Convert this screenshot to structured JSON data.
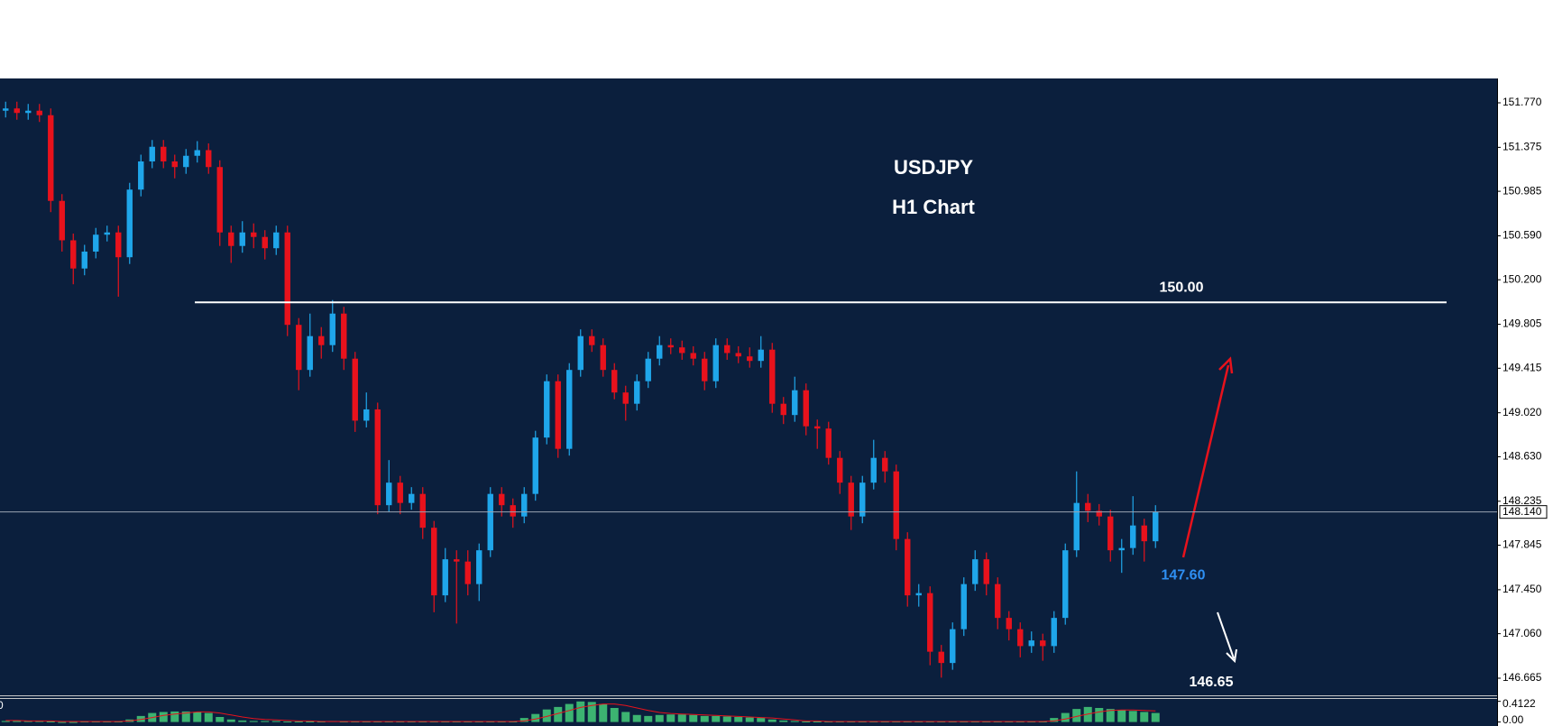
{
  "chart_data": {
    "type": "candlestick",
    "title": "USDJPY",
    "subtitle": "H1 Chart",
    "up_color": "#1fa6ea",
    "down_color": "#e8121c",
    "open": [
      151.7,
      151.72,
      151.68,
      151.7,
      151.66,
      150.9,
      150.55,
      150.3,
      150.45,
      150.6,
      150.62,
      150.4,
      151.0,
      151.25,
      151.38,
      151.25,
      151.2,
      151.3,
      151.35,
      151.2,
      150.62,
      150.5,
      150.62,
      150.58,
      150.48,
      150.62,
      149.8,
      149.4,
      149.7,
      149.62,
      149.9,
      149.5,
      148.95,
      149.05,
      148.2,
      148.4,
      148.22,
      148.3,
      148.0,
      147.4,
      147.72,
      147.7,
      147.5,
      147.8,
      148.3,
      148.2,
      148.1,
      148.3,
      148.8,
      149.3,
      148.7,
      149.4,
      149.7,
      149.62,
      149.4,
      149.2,
      149.1,
      149.3,
      149.5,
      149.62,
      149.6,
      149.55,
      149.5,
      149.3,
      149.62,
      149.55,
      149.52,
      149.48,
      149.58,
      149.1,
      149.0,
      149.22,
      148.9,
      148.88,
      148.62,
      148.4,
      148.1,
      148.4,
      148.62,
      148.5,
      147.9,
      147.4,
      147.42,
      146.9,
      146.8,
      147.1,
      147.5,
      147.72,
      147.5,
      147.2,
      147.1,
      146.95,
      147.0,
      146.95,
      147.2,
      147.8,
      148.22,
      148.15,
      148.1,
      147.8,
      147.82,
      148.02,
      147.88
    ],
    "high": [
      151.78,
      151.78,
      151.76,
      151.76,
      151.72,
      150.96,
      150.61,
      150.51,
      150.66,
      150.68,
      150.68,
      151.06,
      151.31,
      151.44,
      151.44,
      151.31,
      151.36,
      151.43,
      151.41,
      151.26,
      150.68,
      150.72,
      150.7,
      150.64,
      150.68,
      150.68,
      149.86,
      149.9,
      149.78,
      150.02,
      149.96,
      149.56,
      149.2,
      149.11,
      148.6,
      148.46,
      148.36,
      148.36,
      148.06,
      147.82,
      147.8,
      147.8,
      147.86,
      148.36,
      148.36,
      148.26,
      148.36,
      148.86,
      149.36,
      149.36,
      149.46,
      149.76,
      149.76,
      149.68,
      149.46,
      149.26,
      149.36,
      149.56,
      149.7,
      149.68,
      149.66,
      149.61,
      149.56,
      149.68,
      149.68,
      149.61,
      149.6,
      149.7,
      149.64,
      149.16,
      149.34,
      149.28,
      148.96,
      148.94,
      148.68,
      148.46,
      148.46,
      148.78,
      148.68,
      148.56,
      147.96,
      147.5,
      147.48,
      146.96,
      147.16,
      147.56,
      147.8,
      147.78,
      147.56,
      147.26,
      147.16,
      147.08,
      147.06,
      147.26,
      147.86,
      148.5,
      148.3,
      148.21,
      148.16,
      147.9,
      148.28,
      148.08,
      148.2
    ],
    "low": [
      151.64,
      151.62,
      151.62,
      151.6,
      150.8,
      150.45,
      150.16,
      150.24,
      150.39,
      150.54,
      150.05,
      150.34,
      150.94,
      151.19,
      151.19,
      151.1,
      151.14,
      151.24,
      151.14,
      150.5,
      150.35,
      150.44,
      150.48,
      150.38,
      150.42,
      149.7,
      149.22,
      149.34,
      149.5,
      149.56,
      149.4,
      148.85,
      148.89,
      148.12,
      148.14,
      148.12,
      148.16,
      147.9,
      147.25,
      147.34,
      147.15,
      147.4,
      147.35,
      147.74,
      148.1,
      148.0,
      148.04,
      148.24,
      148.74,
      148.62,
      148.64,
      149.34,
      149.56,
      149.34,
      149.14,
      148.95,
      149.04,
      149.24,
      149.44,
      149.54,
      149.49,
      149.44,
      149.22,
      149.24,
      149.49,
      149.46,
      149.42,
      149.42,
      149.02,
      148.92,
      148.94,
      148.82,
      148.7,
      148.56,
      148.3,
      147.98,
      148.04,
      148.34,
      148.4,
      147.8,
      147.3,
      147.3,
      146.78,
      146.67,
      146.74,
      147.04,
      147.44,
      147.4,
      147.1,
      147.0,
      146.85,
      146.89,
      146.82,
      146.89,
      147.14,
      147.74,
      148.05,
      148.02,
      147.7,
      147.6,
      147.76,
      147.7,
      147.82
    ],
    "close": [
      151.72,
      151.68,
      151.7,
      151.66,
      150.9,
      150.55,
      150.3,
      150.45,
      150.6,
      150.62,
      150.4,
      151.0,
      151.25,
      151.38,
      151.25,
      151.2,
      151.3,
      151.35,
      151.2,
      150.62,
      150.5,
      150.62,
      150.58,
      150.48,
      150.62,
      149.8,
      149.4,
      149.7,
      149.62,
      149.9,
      149.5,
      148.95,
      149.05,
      148.2,
      148.4,
      148.22,
      148.3,
      148.0,
      147.4,
      147.72,
      147.7,
      147.5,
      147.8,
      148.3,
      148.2,
      148.1,
      148.3,
      148.8,
      149.3,
      148.7,
      149.4,
      149.7,
      149.62,
      149.4,
      149.2,
      149.1,
      149.3,
      149.5,
      149.62,
      149.6,
      149.55,
      149.5,
      149.3,
      149.62,
      149.55,
      149.52,
      149.48,
      149.58,
      149.1,
      149.0,
      149.22,
      148.9,
      148.88,
      148.62,
      148.4,
      148.1,
      148.4,
      148.62,
      148.5,
      147.9,
      147.4,
      147.42,
      146.9,
      146.8,
      147.1,
      147.5,
      147.72,
      147.5,
      147.2,
      147.1,
      146.95,
      147.0,
      146.95,
      147.2,
      147.8,
      148.22,
      148.15,
      148.1,
      147.8,
      147.82,
      148.02,
      147.88,
      148.14
    ],
    "ylim": [
      146.513,
      151.986
    ],
    "yticks": [
      {
        "value": 151.77,
        "label": "151.770"
      },
      151.375,
      150.985,
      {
        "value": 150.59,
        "label": "150.590"
      },
      {
        "value": 150.2,
        "label": "150.200"
      },
      149.805,
      149.415,
      {
        "value": 149.02,
        "label": "149.020"
      },
      {
        "value": 148.63,
        "label": "148.630"
      },
      148.235,
      147.845,
      {
        "value": 147.45,
        "label": "147.450"
      },
      {
        "value": 147.06,
        "label": "147.060"
      },
      146.665
    ],
    "current_price": {
      "value": 148.14,
      "label": "148.140"
    },
    "level_line": {
      "value": 150.0,
      "label": "150.00",
      "color": "#ffffff"
    },
    "targets": [
      {
        "value": 147.6,
        "label": "147.60",
        "color": "#2e8ff2"
      },
      {
        "value": 146.65,
        "label": "146.65",
        "color": "#ffffff"
      }
    ],
    "indicator": {
      "bar_color": "#3cb371",
      "signal_color": "#e8121c",
      "edge_label": "0",
      "values": [
        0.02,
        0.02,
        0.02,
        0.02,
        0.01,
        0.0,
        0.0,
        0.01,
        0.01,
        0.01,
        0.01,
        0.05,
        0.12,
        0.18,
        0.2,
        0.21,
        0.21,
        0.2,
        0.18,
        0.1,
        0.05,
        0.03,
        0.02,
        0.02,
        0.02,
        0.01,
        0.01,
        0.01,
        0.01,
        0.02,
        0.01,
        0.01,
        0.01,
        0.01,
        0.01,
        0.01,
        0.01,
        0.01,
        0.01,
        0.01,
        0.01,
        0.01,
        0.01,
        0.01,
        0.01,
        0.01,
        0.08,
        0.16,
        0.25,
        0.3,
        0.36,
        0.41,
        0.4,
        0.36,
        0.28,
        0.2,
        0.14,
        0.12,
        0.14,
        0.15,
        0.15,
        0.14,
        0.12,
        0.12,
        0.11,
        0.1,
        0.09,
        0.08,
        0.05,
        0.03,
        0.02,
        0.01,
        0.01,
        0.01,
        0.01,
        0.01,
        0.01,
        0.01,
        0.01,
        0.01,
        0.01,
        0.01,
        0.01,
        0.01,
        0.01,
        0.01,
        0.01,
        0.01,
        0.01,
        0.01,
        0.01,
        0.01,
        0.01,
        0.08,
        0.18,
        0.26,
        0.3,
        0.28,
        0.26,
        0.24,
        0.22,
        0.2,
        0.18
      ],
      "signal": [
        0.03,
        0.03,
        0.02,
        0.02,
        0.02,
        0.01,
        0.01,
        0.01,
        0.01,
        0.01,
        0.01,
        0.02,
        0.05,
        0.09,
        0.13,
        0.16,
        0.18,
        0.2,
        0.2,
        0.18,
        0.14,
        0.1,
        0.07,
        0.05,
        0.04,
        0.03,
        0.02,
        0.02,
        0.01,
        0.01,
        0.01,
        0.01,
        0.01,
        0.01,
        0.01,
        0.01,
        0.01,
        0.01,
        0.01,
        0.01,
        0.01,
        0.01,
        0.01,
        0.01,
        0.01,
        0.01,
        0.02,
        0.06,
        0.11,
        0.17,
        0.23,
        0.29,
        0.33,
        0.36,
        0.36,
        0.33,
        0.28,
        0.23,
        0.19,
        0.17,
        0.16,
        0.15,
        0.14,
        0.13,
        0.12,
        0.11,
        0.1,
        0.09,
        0.08,
        0.06,
        0.04,
        0.02,
        0.02,
        0.01,
        0.01,
        0.01,
        0.01,
        0.01,
        0.01,
        0.01,
        0.01,
        0.01,
        0.01,
        0.01,
        0.01,
        0.01,
        0.01,
        0.01,
        0.01,
        0.01,
        0.01,
        0.01,
        0.01,
        0.02,
        0.06,
        0.11,
        0.16,
        0.2,
        0.23,
        0.24,
        0.24,
        0.23,
        0.22
      ],
      "ylim": [
        -0.08,
        0.46
      ],
      "yticks": [
        {
          "value": 0.4122,
          "label": "0.4122"
        },
        {
          "value": 0,
          "label": "0.00"
        }
      ]
    }
  }
}
